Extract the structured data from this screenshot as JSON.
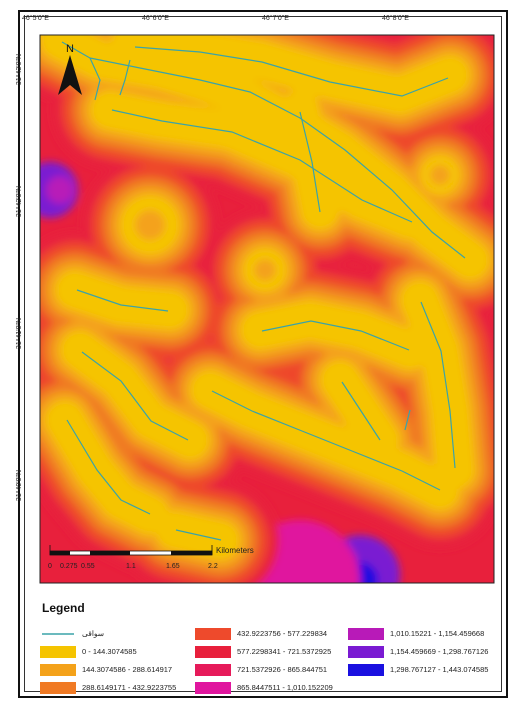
{
  "map": {
    "top_ticks": [
      "46°5'0\"E",
      "46°6'0\"E",
      "46°7'0\"E",
      "46°8'0\"E"
    ],
    "left_ticks": [
      "31°43'0\"N",
      "31°42'0\"N",
      "31°41'0\"N",
      "31°40'0\"N"
    ],
    "north_label": "N",
    "scale": {
      "labels": [
        "0",
        "0.275",
        "0.55",
        "1.1",
        "1.65",
        "2.2"
      ],
      "unit": "Kilometers"
    }
  },
  "legend": {
    "title": "Legend",
    "stream_label": "سواقی",
    "stream_color": "#3aa3a8",
    "classes": [
      {
        "label": "0 - 144.3074585",
        "color": "#f5c400"
      },
      {
        "label": "144.3074586 - 288.614917",
        "color": "#f4a21a"
      },
      {
        "label": "288.6149171 - 432.9223755",
        "color": "#f07a24"
      },
      {
        "label": "432.9223756 - 577.229834",
        "color": "#ee4a2c"
      },
      {
        "label": "577.2298341 - 721.5372925",
        "color": "#e8203c"
      },
      {
        "label": "721.5372926 - 865.844751",
        "color": "#e61a5a"
      },
      {
        "label": "865.8447511 - 1,010.152209",
        "color": "#e0169e"
      },
      {
        "label": "1,010.15221 - 1,154.459668",
        "color": "#b81ab8"
      },
      {
        "label": "1,154.459669 - 1,298.767126",
        "color": "#7a1ad2"
      },
      {
        "label": "1,298.767127 - 1,443.074585",
        "color": "#1a10e0"
      }
    ]
  }
}
